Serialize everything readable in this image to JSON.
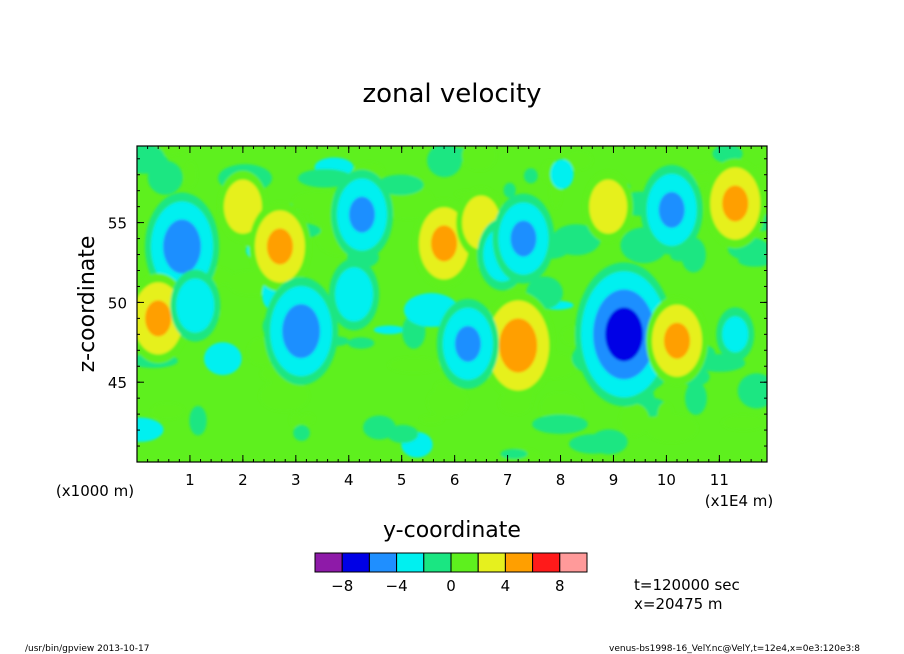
{
  "chart_data": {
    "type": "heatmap",
    "title": "zonal velocity",
    "xlabel": "y-coordinate",
    "ylabel": "z-coordinate",
    "x_unit_note": "(x1E4 m)",
    "y_unit_note": "(x1000 m)",
    "x_ticks": [
      "1",
      "2",
      "3",
      "4",
      "5",
      "6",
      "7",
      "8",
      "9",
      "10",
      "11"
    ],
    "x_tick_values": [
      1,
      2,
      3,
      4,
      5,
      6,
      7,
      8,
      9,
      10,
      11
    ],
    "y_ticks": [
      "45",
      "50",
      "55"
    ],
    "y_tick_values": [
      45,
      50,
      55
    ],
    "xlim": [
      0,
      11.9
    ],
    "ylim": [
      40,
      59.8
    ],
    "colorbar": {
      "levels": [
        -10,
        -8,
        -6,
        -4,
        -2,
        0,
        2,
        4,
        6,
        8,
        10
      ],
      "tick_labels": [
        "−8",
        "−4",
        "0",
        "4",
        "8"
      ],
      "tick_values": [
        -8,
        -4,
        0,
        4,
        8
      ],
      "colors": [
        "#8e1aa8",
        "#0000e6",
        "#1f8fff",
        "#00f0f0",
        "#1ae682",
        "#5ef01e",
        "#e6f01e",
        "#ff9f00",
        "#ff1a1a",
        "#ff9a9a"
      ]
    },
    "features": [
      {
        "x": 0.85,
        "z": 53.5,
        "value": -5
      },
      {
        "x": 0.4,
        "z": 49.0,
        "value": 4
      },
      {
        "x": 1.1,
        "z": 49.8,
        "value": -3
      },
      {
        "x": 2.0,
        "z": 56.0,
        "value": 3
      },
      {
        "x": 2.7,
        "z": 53.5,
        "value": 4
      },
      {
        "x": 3.1,
        "z": 48.2,
        "value": -5
      },
      {
        "x": 4.25,
        "z": 55.5,
        "value": -4
      },
      {
        "x": 4.1,
        "z": 50.5,
        "value": -3
      },
      {
        "x": 5.8,
        "z": 53.7,
        "value": 4
      },
      {
        "x": 6.5,
        "z": 55.0,
        "value": 3
      },
      {
        "x": 6.9,
        "z": 53.0,
        "value": -3
      },
      {
        "x": 7.3,
        "z": 54.0,
        "value": -4
      },
      {
        "x": 7.2,
        "z": 47.3,
        "value": 5
      },
      {
        "x": 6.25,
        "z": 47.4,
        "value": -4
      },
      {
        "x": 8.9,
        "z": 56.0,
        "value": 3
      },
      {
        "x": 9.2,
        "z": 48.0,
        "value": -7
      },
      {
        "x": 10.1,
        "z": 55.8,
        "value": -4
      },
      {
        "x": 10.2,
        "z": 47.6,
        "value": 4
      },
      {
        "x": 11.3,
        "z": 56.2,
        "value": 4
      },
      {
        "x": 11.3,
        "z": 48.0,
        "value": -2
      }
    ]
  },
  "info": {
    "time": "t=120000 sec",
    "position": "x=20475 m"
  },
  "footer": {
    "left": "/usr/bin/gpview  2013-10-17",
    "right": "venus-bs1998-16_VelY.nc@VelY,t=12e4,x=0e3:120e3:8"
  }
}
